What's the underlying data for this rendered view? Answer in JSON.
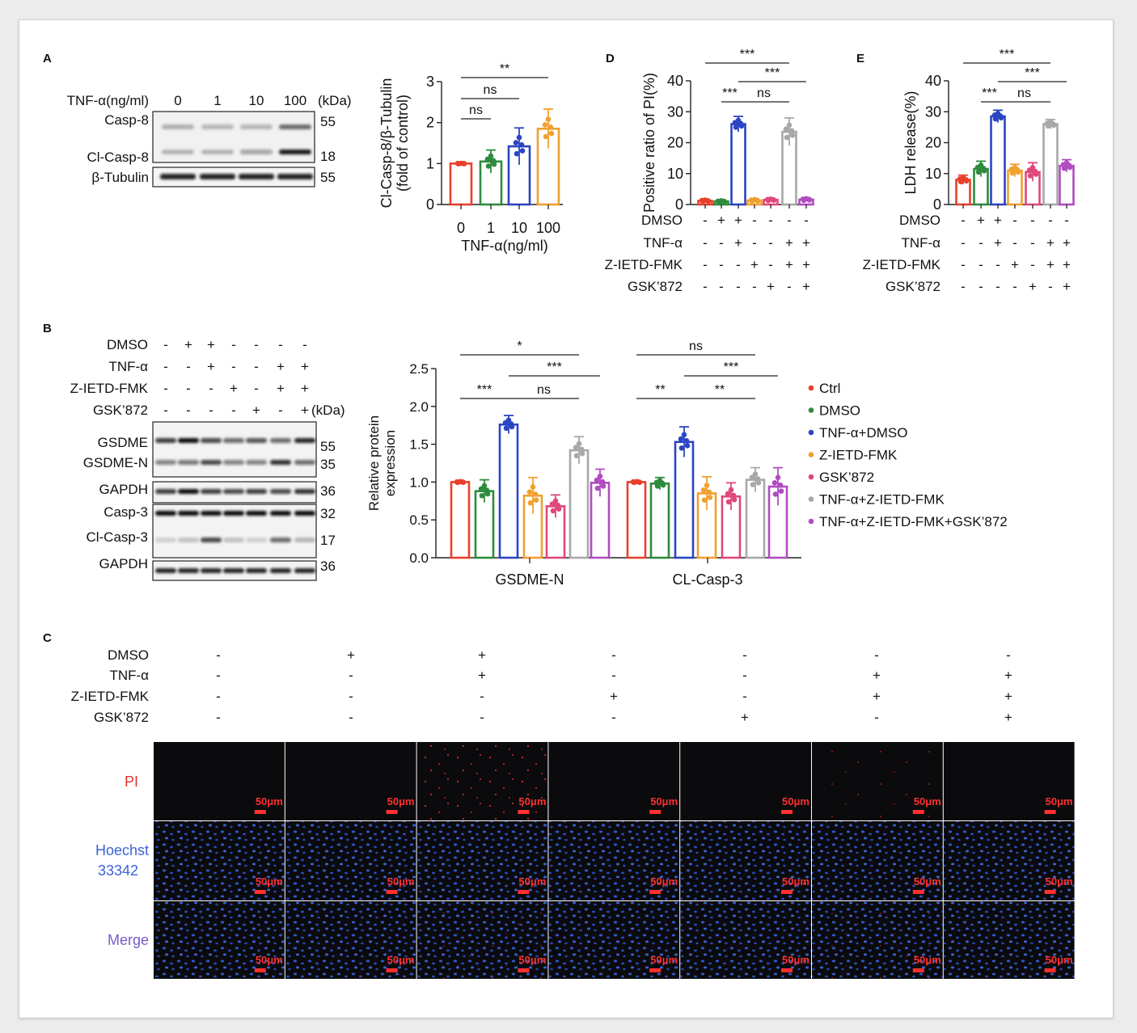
{
  "panel_labels": {
    "A": "A",
    "B": "B",
    "C": "C",
    "D": "D",
    "E": "E"
  },
  "groups": [
    "Ctrl",
    "DMSO",
    "TNF-α+DMSO",
    "Z-IETD-FMK",
    "GSK’872",
    "TNF-α+Z-IETD-FMK",
    "TNF-α+Z-IETD-FMK+GSK’872"
  ],
  "group_colors": [
    "#e8402c",
    "#2e8b3e",
    "#2b45c2",
    "#f0a030",
    "#e0487a",
    "#a8a8a8",
    "#b04cc0"
  ],
  "treat_rows": [
    {
      "label": "DMSO",
      "signs": [
        "-",
        "+",
        "+",
        "-",
        "-",
        "-",
        "-"
      ]
    },
    {
      "label": "TNF-α",
      "signs": [
        "-",
        "-",
        "+",
        "-",
        "-",
        "+",
        "+"
      ]
    },
    {
      "label": "Z-IETD-FMK",
      "signs": [
        "-",
        "-",
        "-",
        "+",
        "-",
        "+",
        "+"
      ]
    },
    {
      "label": "GSK’872",
      "signs": [
        "-",
        "-",
        "-",
        "-",
        "+",
        "-",
        "+"
      ]
    }
  ],
  "panelA": {
    "header_label": "TNF-α(ng/ml)",
    "doses": [
      "0",
      "1",
      "10",
      "100"
    ],
    "kda_label": "(kDa)",
    "blot1": {
      "labels": [
        "Casp-8",
        "Cl-Casp-8"
      ],
      "kda": [
        "55",
        "18"
      ]
    },
    "blot2": {
      "labels": [
        "β-Tubulin"
      ],
      "kda": [
        "55"
      ]
    }
  },
  "panelB": {
    "kda_label": "(kDa)",
    "blots": [
      {
        "labels": [
          "GSDME",
          "GSDME-N"
        ],
        "kda": [
          "55",
          "35"
        ]
      },
      {
        "labels": [
          "GAPDH"
        ],
        "kda": [
          "36"
        ]
      },
      {
        "labels": [
          "Casp-3",
          "Cl-Casp-3"
        ],
        "kda": [
          "32",
          "17"
        ]
      },
      {
        "labels": [
          "GAPDH"
        ],
        "kda": [
          "36"
        ]
      }
    ]
  },
  "panelC": {
    "row_labels": [
      "PI",
      "Hoechst",
      "33342",
      "Merge"
    ],
    "row_label_colors": [
      "#e03030",
      "#3a62d8",
      "#7a5ac8"
    ],
    "scale_label": "50μm"
  },
  "chart_data": [
    {
      "id": "A-bar",
      "type": "bar",
      "categories": [
        "0",
        "1",
        "10",
        "100"
      ],
      "values": [
        1.0,
        1.05,
        1.42,
        1.85
      ],
      "errors": [
        0.0,
        0.28,
        0.45,
        0.48
      ],
      "colors": [
        "#e8402c",
        "#2e8b3e",
        "#2b45c2",
        "#f0a030"
      ],
      "ylabel": "Cl-Casp-8/β-Tubulin",
      "ylabel2": "(fold of control)",
      "xlabel": "TNF-α(ng/ml)",
      "ylim": [
        0,
        3
      ],
      "yticks": [
        "0",
        "1",
        "2",
        "3"
      ],
      "sig": [
        {
          "label": "ns",
          "from": 0,
          "to": 1
        },
        {
          "label": "ns",
          "from": 0,
          "to": 2
        },
        {
          "label": "**",
          "from": 0,
          "to": 3
        }
      ]
    },
    {
      "id": "B-bar",
      "type": "bar",
      "categories": [
        "GSDME-N",
        "CL-Casp-3"
      ],
      "series": [
        {
          "name": "Ctrl",
          "values": [
            1.0,
            1.0
          ],
          "errors": [
            0.0,
            0.0
          ]
        },
        {
          "name": "DMSO",
          "values": [
            0.88,
            0.98
          ],
          "errors": [
            0.15,
            0.08
          ]
        },
        {
          "name": "TNF-α+DMSO",
          "values": [
            1.76,
            1.53
          ],
          "errors": [
            0.12,
            0.2
          ]
        },
        {
          "name": "Z-IETD-FMK",
          "values": [
            0.82,
            0.85
          ],
          "errors": [
            0.24,
            0.22
          ]
        },
        {
          "name": "GSK’872",
          "values": [
            0.68,
            0.81
          ],
          "errors": [
            0.15,
            0.18
          ]
        },
        {
          "name": "TNF-α+Z-IETD-FMK",
          "values": [
            1.42,
            1.03
          ],
          "errors": [
            0.18,
            0.16
          ]
        },
        {
          "name": "TNF-α+Z-IETD-FMK+GSK’872",
          "values": [
            0.99,
            0.94
          ],
          "errors": [
            0.18,
            0.25
          ]
        }
      ],
      "ylabel": "Relative protein",
      "ylabel2": "expression",
      "ylim": [
        0,
        2.5
      ],
      "yticks": [
        "0.0",
        "0.5",
        "1.0",
        "1.5",
        "2.0",
        "2.5"
      ],
      "legend": "right",
      "sig": [
        {
          "cat": 0,
          "label": "***",
          "from": 0,
          "to": 2,
          "level": 1
        },
        {
          "cat": 0,
          "label": "ns",
          "from": 2,
          "to": 5,
          "level": 1
        },
        {
          "cat": 0,
          "label": "***",
          "from": 2,
          "to": 6,
          "level": 2
        },
        {
          "cat": 0,
          "label": "*",
          "from": 0,
          "to": 5,
          "level": 3
        },
        {
          "cat": 1,
          "label": "**",
          "from": 0,
          "to": 2,
          "level": 1
        },
        {
          "cat": 1,
          "label": "**",
          "from": 2,
          "to": 5,
          "level": 1
        },
        {
          "cat": 1,
          "label": "***",
          "from": 2,
          "to": 6,
          "level": 2
        },
        {
          "cat": 1,
          "label": "ns",
          "from": 0,
          "to": 5,
          "level": 3
        }
      ]
    },
    {
      "id": "D-bar",
      "type": "bar",
      "categories": [
        "Ctrl",
        "DMSO",
        "TNF-α+DMSO",
        "Z-IETD-FMK",
        "GSK’872",
        "TNF-α+Z-IETD-FMK",
        "TNF-α+Z-IETD-FMK+GSK’872"
      ],
      "values": [
        1.2,
        1.0,
        26.0,
        1.3,
        1.5,
        23.5,
        1.6
      ],
      "errors": [
        0.5,
        0.4,
        2.5,
        0.6,
        0.5,
        4.5,
        0.6
      ],
      "ylabel": "Positive ratio of PI(%)",
      "ylim": [
        0,
        40
      ],
      "yticks": [
        "0",
        "10",
        "20",
        "30",
        "40"
      ],
      "sig": [
        {
          "label": "***",
          "from": 1,
          "to": 2,
          "level": 1
        },
        {
          "label": "ns",
          "from": 2,
          "to": 5,
          "level": 1
        },
        {
          "label": "***",
          "from": 2,
          "to": 6,
          "level": 2
        },
        {
          "label": "***",
          "from": 0,
          "to": 5,
          "level": 3
        }
      ]
    },
    {
      "id": "E-bar",
      "type": "bar",
      "categories": [
        "Ctrl",
        "DMSO",
        "TNF-α+DMSO",
        "Z-IETD-FMK",
        "GSK’872",
        "TNF-α+Z-IETD-FMK",
        "TNF-α+Z-IETD-FMK+GSK’872"
      ],
      "values": [
        8.0,
        11.5,
        28.5,
        11.0,
        10.5,
        26.0,
        12.5
      ],
      "errors": [
        1.5,
        2.5,
        2.0,
        2.0,
        3.0,
        1.5,
        2.0
      ],
      "ylabel": "LDH release(%)",
      "ylim": [
        0,
        40
      ],
      "yticks": [
        "0",
        "10",
        "20",
        "30",
        "40"
      ],
      "sig": [
        {
          "label": "***",
          "from": 1,
          "to": 2,
          "level": 1
        },
        {
          "label": "ns",
          "from": 2,
          "to": 5,
          "level": 1
        },
        {
          "label": "***",
          "from": 2,
          "to": 6,
          "level": 2
        },
        {
          "label": "***",
          "from": 0,
          "to": 5,
          "level": 3
        }
      ]
    }
  ]
}
